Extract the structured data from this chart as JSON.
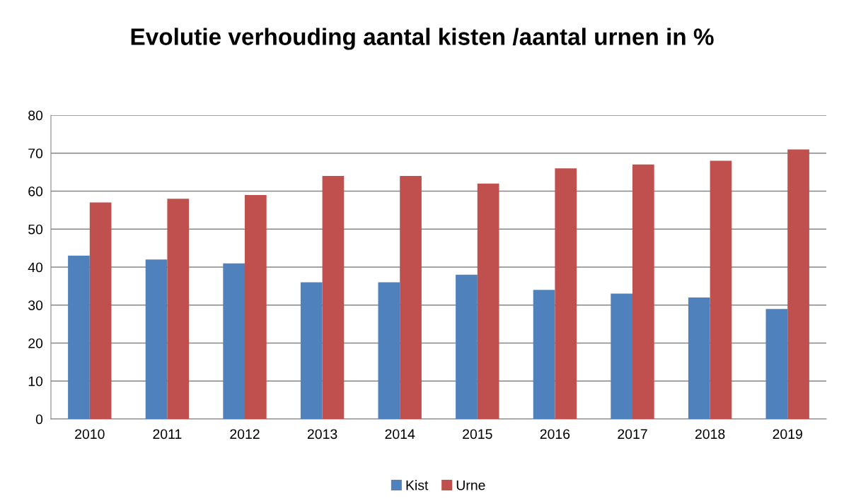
{
  "chart_data": {
    "type": "bar",
    "title": "Evolutie verhouding aantal kisten /aantal urnen in %",
    "categories": [
      "2010",
      "2011",
      "2012",
      "2013",
      "2014",
      "2015",
      "2016",
      "2017",
      "2018",
      "2019"
    ],
    "series": [
      {
        "name": "Kist",
        "color": "#4f81bd",
        "values": [
          43,
          42,
          41,
          36,
          36,
          38,
          34,
          33,
          32,
          29
        ]
      },
      {
        "name": "Urne",
        "color": "#c0504d",
        "values": [
          57,
          58,
          59,
          64,
          64,
          62,
          66,
          67,
          68,
          71
        ]
      }
    ],
    "ylim": [
      0,
      80
    ],
    "yticks": [
      0,
      10,
      20,
      30,
      40,
      50,
      60,
      70,
      80
    ],
    "grid": "y",
    "legend": "bottom"
  }
}
